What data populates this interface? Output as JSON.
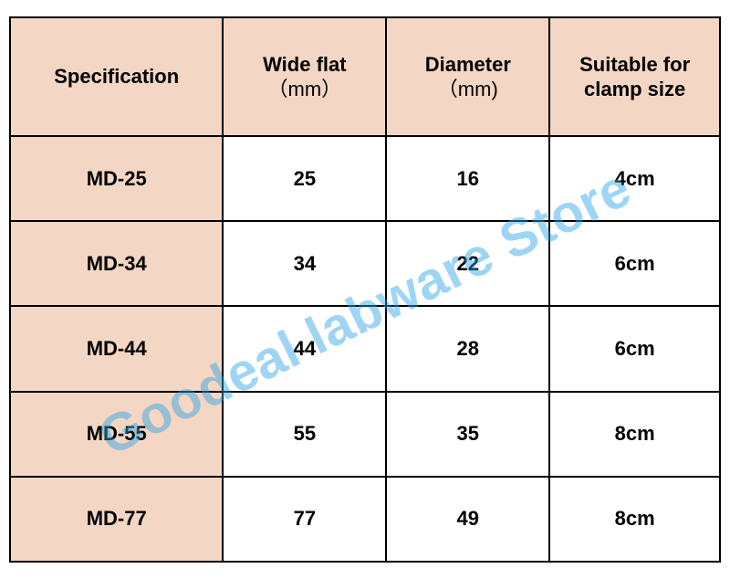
{
  "table": {
    "columns": [
      {
        "label": "Specification",
        "sub": ""
      },
      {
        "label": "Wide flat",
        "sub": "（mm）"
      },
      {
        "label": "Diameter",
        "sub": "（mm)"
      },
      {
        "label": "Suitable for clamp size",
        "sub": ""
      }
    ],
    "rows": [
      {
        "spec": "MD-25",
        "wide": "25",
        "dia": "16",
        "clamp": "4cm"
      },
      {
        "spec": "MD-34",
        "wide": "34",
        "dia": "22",
        "clamp": "6cm"
      },
      {
        "spec": "MD-44",
        "wide": "44",
        "dia": "28",
        "clamp": "6cm"
      },
      {
        "spec": "MD-55",
        "wide": "55",
        "dia": "35",
        "clamp": "8cm"
      },
      {
        "spec": "MD-77",
        "wide": "77",
        "dia": "49",
        "clamp": "8cm"
      }
    ],
    "header_bg": "#f3d6c4",
    "border_color": "#000000",
    "font_size_header": 22,
    "font_size_cell": 22,
    "col_widths_pct": [
      30,
      23,
      23,
      24
    ]
  },
  "watermark": {
    "text": "Goodeal labware Store",
    "color": "#2aa4e8",
    "opacity": 0.45,
    "rotation_deg": -26,
    "font_size": 58
  }
}
